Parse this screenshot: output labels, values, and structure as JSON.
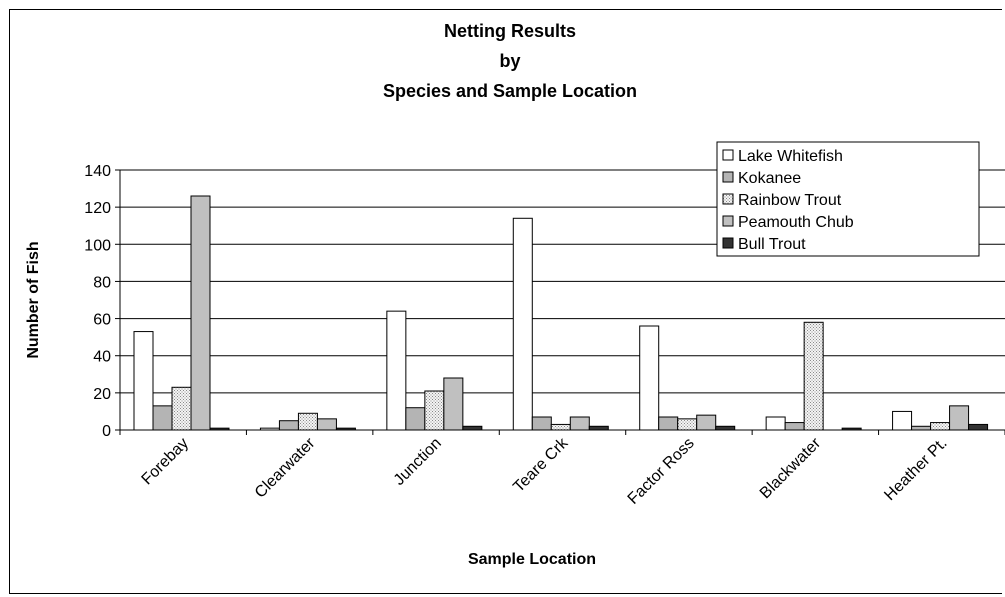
{
  "chart_data": {
    "type": "bar",
    "title_lines": [
      "Netting Results",
      "by",
      "Species and Sample Location"
    ],
    "xlabel": "Sample Location",
    "ylabel": "Number of Fish",
    "ylim": [
      0,
      140
    ],
    "yticks": [
      0,
      20,
      40,
      60,
      80,
      100,
      120,
      140
    ],
    "grid": true,
    "legend_position": "top-right",
    "categories": [
      "Forebay",
      "Clearwater",
      "Junction",
      "Teare Crk",
      "Factor Ross",
      "Blackwater",
      "Heather Pt."
    ],
    "series": [
      {
        "name": "Lake Whitefish",
        "fill": "#ffffff",
        "pattern": "solid",
        "values": [
          53,
          1,
          64,
          114,
          56,
          7,
          10
        ]
      },
      {
        "name": "Kokanee",
        "fill": "#b4b4b4",
        "pattern": "solid",
        "values": [
          13,
          5,
          12,
          7,
          7,
          4,
          2
        ]
      },
      {
        "name": "Rainbow Trout",
        "fill": "#f0f0f0",
        "pattern": "dotted",
        "values": [
          23,
          9,
          21,
          3,
          6,
          58,
          4
        ]
      },
      {
        "name": "Peamouth Chub",
        "fill": "#c0c0c0",
        "pattern": "solid",
        "values": [
          126,
          6,
          28,
          7,
          8,
          0,
          13
        ]
      },
      {
        "name": "Bull Trout",
        "fill": "#333333",
        "pattern": "solid",
        "values": [
          1,
          1,
          2,
          2,
          2,
          1,
          3
        ]
      }
    ]
  }
}
